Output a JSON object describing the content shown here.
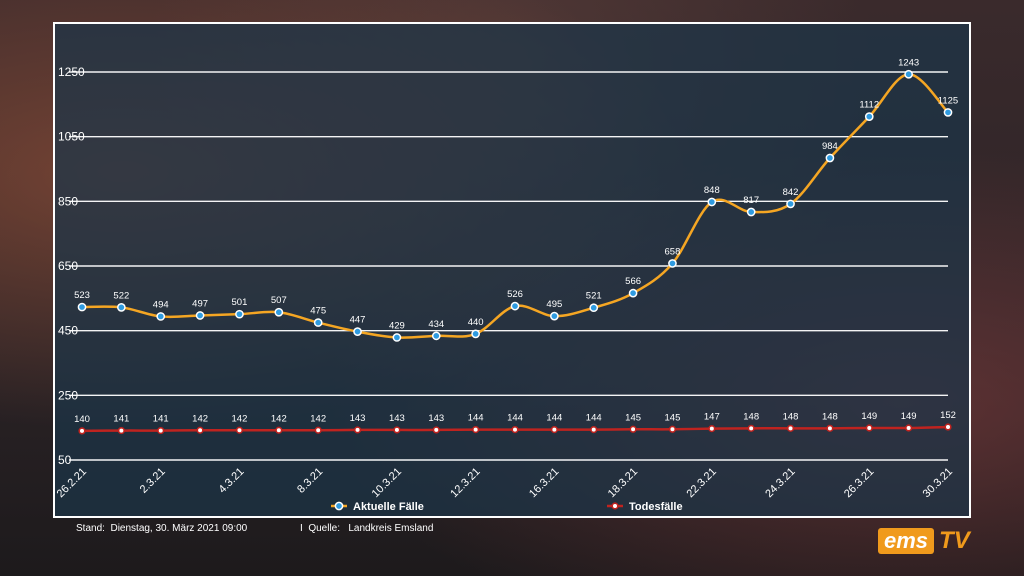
{
  "chart_data": {
    "type": "line",
    "title": "",
    "xlabel": "",
    "ylabel": "",
    "ylim": [
      50,
      1300
    ],
    "yticks": [
      50,
      250,
      450,
      650,
      850,
      1050,
      1250
    ],
    "grid": true,
    "legend_position": "bottom",
    "x_tick_labels": [
      "26.2.21",
      "2.3.21",
      "4.3.21",
      "8.3.21",
      "10.3.21",
      "12.3.21",
      "16.3.21",
      "18.3.21",
      "22.3.21",
      "24.3.21",
      "26.3.21",
      "30.3.21"
    ],
    "x_tick_indices": [
      0,
      2,
      4,
      6,
      8,
      10,
      12,
      14,
      16,
      18,
      20,
      22
    ],
    "series": [
      {
        "name": "Aktuelle Fälle",
        "color": "#f5a623",
        "marker_color": "#2f9be0",
        "values": [
          523,
          522,
          494,
          497,
          501,
          507,
          475,
          447,
          429,
          434,
          440,
          526,
          495,
          521,
          566,
          658,
          848,
          817,
          842,
          984,
          1112,
          1243,
          1125
        ]
      },
      {
        "name": "Todesfälle",
        "color": "#c0231f",
        "marker_color": "#ffffff",
        "values": [
          140,
          141,
          141,
          142,
          142,
          142,
          142,
          143,
          143,
          143,
          144,
          144,
          144,
          144,
          145,
          145,
          147,
          148,
          148,
          148,
          149,
          149,
          152
        ]
      }
    ]
  },
  "footer": {
    "stand": "Stand:  Dienstag, 30. März 2021 09:00",
    "quelle": "I  Quelle:   Landkreis Emsland"
  },
  "logo": {
    "part1": "ems",
    "part2": "TV"
  }
}
